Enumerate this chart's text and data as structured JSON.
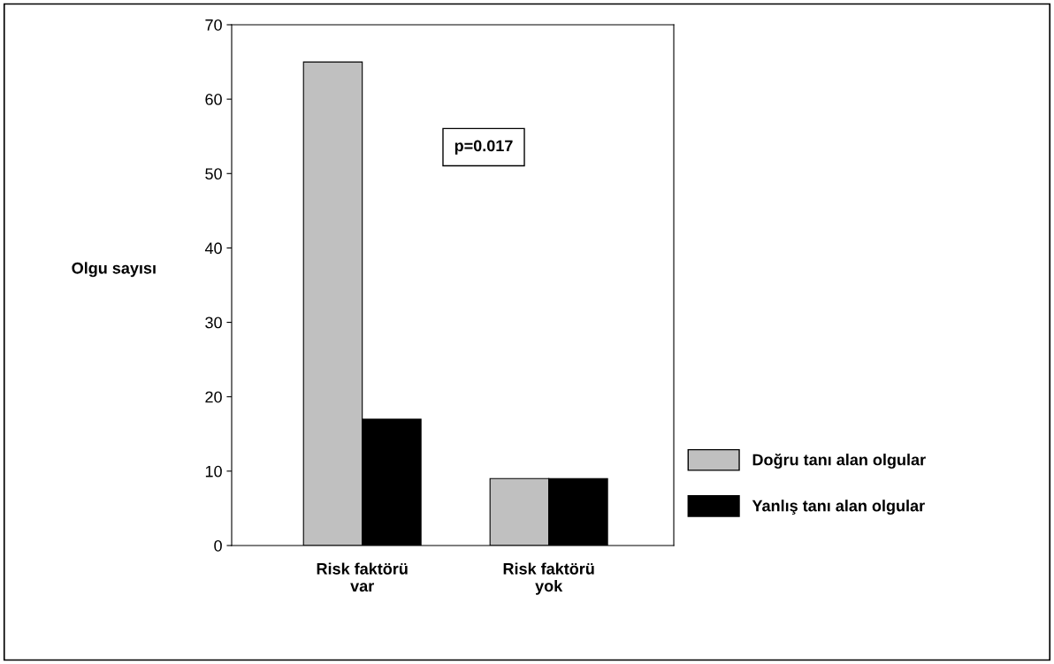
{
  "chart_data": {
    "type": "bar",
    "ylabel": "Olgu sayısı",
    "categories": [
      "Risk faktörü\nvar",
      "Risk faktörü\nyok"
    ],
    "series": [
      {
        "name": "Doğru tanı alan olgular",
        "color": "#c0c0c0",
        "values": [
          65,
          9
        ]
      },
      {
        "name": "Yanlış tanı alan olgular",
        "color": "#000000",
        "values": [
          17,
          9
        ]
      }
    ],
    "ylim": [
      0,
      70
    ],
    "yticks": [
      0,
      10,
      20,
      30,
      40,
      50,
      60,
      70
    ],
    "grid": false,
    "legend": "right",
    "annotations": [
      "p=0.017"
    ]
  }
}
